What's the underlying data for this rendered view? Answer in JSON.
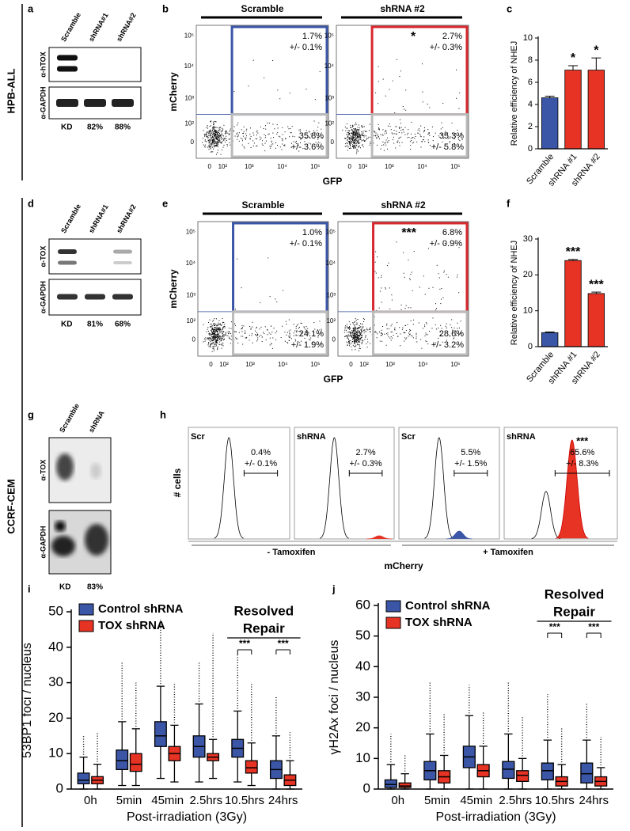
{
  "side_labels": [
    "HPB-ALL",
    "CCRF-CEM"
  ],
  "blots": [
    {
      "letter": "a",
      "lanes": [
        "Scramble",
        "shRNA#1",
        "shRNA#2"
      ],
      "antibodies": [
        "α-hTOX",
        "α-GAPDH"
      ],
      "kd_label": "KD",
      "kd_values": [
        "82%",
        "88%"
      ]
    },
    {
      "letter": "d",
      "lanes": [
        "Scramble",
        "shRNA#1",
        "shRNA#2"
      ],
      "antibodies": [
        "α-TOX",
        "α-GAPDH"
      ],
      "kd_label": "KD",
      "kd_values": [
        "81%",
        "68%"
      ]
    },
    {
      "letter": "g",
      "lanes": [
        "Scramble",
        "shRNA"
      ],
      "antibodies": [
        "α-TOX",
        "α-GAPDH"
      ],
      "kd_label": "KD",
      "kd_values": [
        "83%"
      ]
    }
  ],
  "flow_panels": [
    {
      "letter": "b",
      "y_label": "mCherry",
      "x_label": "GFP",
      "y_ticks": [
        "10⁵",
        "10⁴",
        "10³",
        "10²",
        "0"
      ],
      "x_ticks": [
        "0",
        "10²",
        "10³",
        "10⁴",
        "10⁵"
      ],
      "plots": [
        {
          "title": "Scramble",
          "upper_gate": [
            "1.7%",
            "+/- 0.1%"
          ],
          "lower_gate": [
            "35.8%",
            "+/- 3.6%"
          ]
        },
        {
          "title": "shRNA #2",
          "significance": "*",
          "upper_gate": [
            "2.7%",
            "+/- 0.3%"
          ],
          "lower_gate": [
            "35.3%",
            "+/- 5.8%"
          ]
        }
      ]
    },
    {
      "letter": "e",
      "y_label": "mCherry",
      "x_label": "GFP",
      "y_ticks": [
        "10⁵",
        "10⁴",
        "10³",
        "10²",
        "0"
      ],
      "x_ticks": [
        "0",
        "10²",
        "10³",
        "10⁴",
        "10⁵"
      ],
      "plots": [
        {
          "title": "Scramble",
          "upper_gate": [
            "1.0%",
            "+/- 0.1%"
          ],
          "lower_gate": [
            "24.1%",
            "+/- 1.9%"
          ]
        },
        {
          "title": "shRNA #2",
          "significance": "***",
          "upper_gate": [
            "6.8%",
            "+/- 0.9%"
          ],
          "lower_gate": [
            "28.6%",
            "+/- 3.2%"
          ]
        }
      ]
    }
  ],
  "histogram_panel": {
    "letter": "h",
    "y_label": "# cells",
    "x_label": "mCherry",
    "groups": [
      "- Tamoxifen",
      "+ Tamoxifen"
    ],
    "plots": [
      {
        "label": "Scr",
        "gate": [
          "0.4%",
          "+/- 0.1%"
        ]
      },
      {
        "label": "shRNA",
        "gate": [
          "2.7%",
          "+/- 0.3%"
        ]
      },
      {
        "label": "Scr",
        "gate": [
          "5.5%",
          "+/- 1.5%"
        ]
      },
      {
        "label": "shRNA",
        "significance": "***",
        "gate": [
          "65.6%",
          "+/- 8.3%"
        ]
      }
    ]
  },
  "chart_data": [
    {
      "type": "bar",
      "letter": "c",
      "y_label": "Relative efficiency of NHEJ",
      "categories": [
        "Scramble",
        "shRNA #1",
        "shRNA #2"
      ],
      "values": [
        4.6,
        7.1,
        7.1
      ],
      "errors": [
        0.15,
        0.4,
        1.1
      ],
      "colors": [
        "#3b56a6",
        "#e63323",
        "#e63323"
      ],
      "significance": [
        null,
        "*",
        "*"
      ],
      "ylim": [
        0,
        10
      ],
      "yticks": [
        0,
        2,
        4,
        6,
        8,
        10
      ]
    },
    {
      "type": "bar",
      "letter": "f",
      "y_label": "Relative efficiency of NHEJ",
      "categories": [
        "Scramble",
        "shRNA #1",
        "shRNA #2"
      ],
      "values": [
        3.9,
        24.0,
        14.8
      ],
      "errors": [
        0.2,
        0.3,
        0.4
      ],
      "colors": [
        "#3b56a6",
        "#e63323",
        "#e63323"
      ],
      "significance": [
        null,
        "***",
        "***"
      ],
      "ylim": [
        0,
        30
      ],
      "yticks": [
        0,
        10,
        20,
        30
      ]
    },
    {
      "type": "box",
      "letter": "i",
      "y_label": "53BP1 foci / nucleus",
      "x_label": "Post-irradiation (3Gy)",
      "categories": [
        "0h",
        "5min",
        "45min",
        "2.5hrs",
        "10.5hrs",
        "24hrs"
      ],
      "ylim": [
        0,
        50
      ],
      "yticks": [
        0,
        10,
        20,
        30,
        40,
        50
      ],
      "annotation": [
        "Resolved",
        "Repair"
      ],
      "brackets": [
        "***",
        "***"
      ],
      "series": [
        {
          "name": "Control shRNA",
          "color": "#3b56a6",
          "whisker_low": [
            0,
            1,
            3,
            2,
            2,
            0
          ],
          "q1": [
            1.5,
            5.5,
            12,
            9,
            9,
            3
          ],
          "median": [
            2.5,
            8,
            15,
            12,
            11.5,
            5.5
          ],
          "q3": [
            4.5,
            11,
            19,
            15,
            14,
            8
          ],
          "whisker_high": [
            9,
            19,
            29,
            24,
            22,
            15
          ],
          "max": [
            15,
            36,
            48,
            36,
            38,
            26
          ]
        },
        {
          "name": "TOX shRNA",
          "color": "#e63323",
          "whisker_low": [
            0,
            1,
            2,
            3,
            1,
            0
          ],
          "q1": [
            1.5,
            5,
            8,
            8,
            4.5,
            1
          ],
          "median": [
            2.5,
            7,
            10,
            9,
            6,
            2.5
          ],
          "q3": [
            3.5,
            10,
            12,
            10,
            8,
            4
          ],
          "whisker_high": [
            7,
            17,
            18,
            14,
            13,
            8
          ],
          "max": [
            16,
            30,
            30,
            44,
            30,
            16
          ]
        }
      ]
    },
    {
      "type": "box",
      "letter": "j",
      "y_label": "γH2Ax foci / nucleus",
      "x_label": "Post-irradiation (3Gy)",
      "categories": [
        "0h",
        "5min",
        "45min",
        "2.5hrs",
        "10.5hrs",
        "24hrs"
      ],
      "ylim": [
        0,
        60
      ],
      "yticks": [
        0,
        10,
        20,
        30,
        40,
        50,
        60
      ],
      "annotation": [
        "Resolved",
        "Repair"
      ],
      "brackets": [
        "***",
        "***"
      ],
      "series": [
        {
          "name": "Control shRNA",
          "color": "#3b56a6",
          "whisker_low": [
            0,
            0,
            0,
            0,
            0,
            0
          ],
          "q1": [
            0.5,
            3,
            7,
            3.5,
            3,
            2
          ],
          "median": [
            1.5,
            6,
            10.5,
            6.5,
            6,
            5
          ],
          "q3": [
            3,
            9,
            14,
            9,
            8.5,
            8.5
          ],
          "whisker_high": [
            8,
            18,
            24,
            18,
            16,
            16
          ],
          "max": [
            18,
            35,
            34,
            35,
            31,
            28
          ]
        },
        {
          "name": "TOX shRNA",
          "color": "#e63323",
          "whisker_low": [
            0,
            0,
            0,
            0,
            0,
            0
          ],
          "q1": [
            0.5,
            2,
            4,
            2.5,
            1,
            1
          ],
          "median": [
            1,
            4,
            6,
            4.5,
            2.5,
            2.5
          ],
          "q3": [
            2,
            6,
            8,
            6,
            4,
            4
          ],
          "whisker_high": [
            5,
            11,
            14,
            10,
            8,
            7
          ],
          "max": [
            11,
            25,
            25,
            24,
            20,
            17
          ]
        }
      ]
    }
  ]
}
